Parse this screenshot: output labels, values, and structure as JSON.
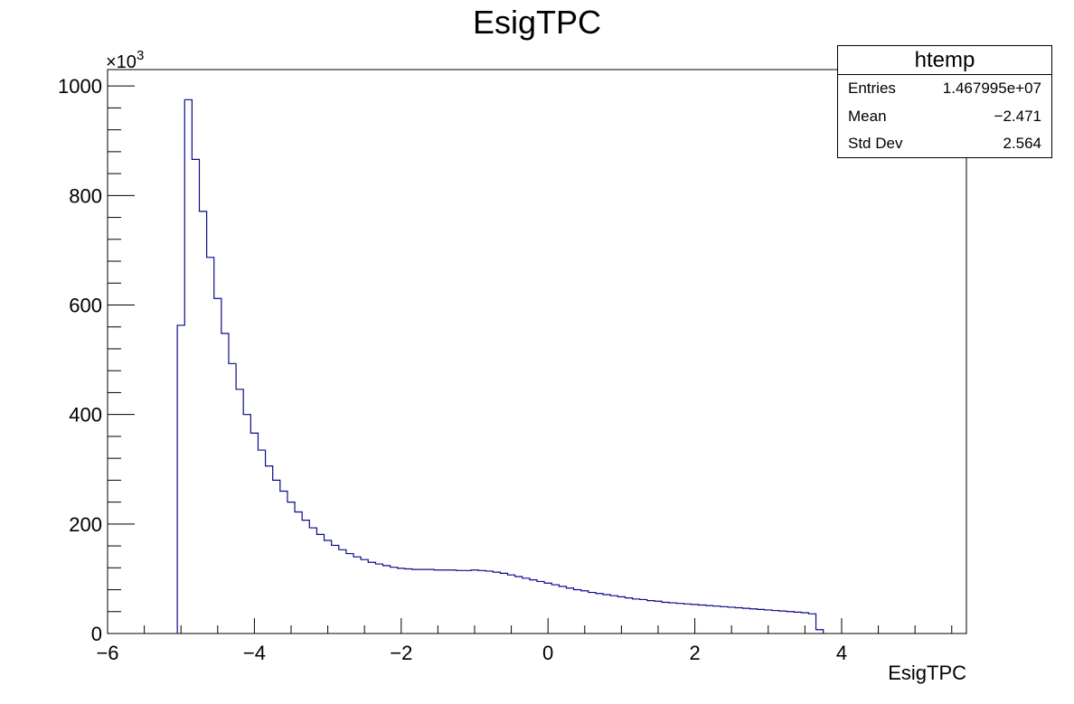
{
  "chart_data": {
    "type": "histogram",
    "title": "EsigTPC",
    "xlabel": "EsigTPC",
    "ylabel": "",
    "y_multiplier_label": "×10",
    "y_multiplier_exponent": "3",
    "xlim": [
      -6,
      5.7
    ],
    "ylim": [
      0,
      1030
    ],
    "x_ticks": [
      -6,
      -4,
      -2,
      0,
      2,
      4
    ],
    "x_tick_labels": [
      "−6",
      "−4",
      "−2",
      "0",
      "2",
      "4"
    ],
    "y_ticks": [
      0,
      200,
      400,
      600,
      800,
      1000
    ],
    "y_tick_labels": [
      "0",
      "200",
      "400",
      "600",
      "800",
      "1000"
    ],
    "bin_start": -5.05,
    "bin_width": 0.1,
    "values": [
      563,
      975,
      866,
      771,
      687,
      612,
      548,
      493,
      446,
      400,
      366,
      335,
      306,
      280,
      260,
      240,
      222,
      207,
      193,
      181,
      170,
      161,
      153,
      146,
      140,
      135,
      130,
      127,
      124,
      121,
      119,
      118,
      117,
      117,
      117,
      116,
      116,
      116,
      115,
      115,
      116,
      115,
      114,
      112,
      110,
      107,
      104,
      101,
      98,
      95,
      92,
      89,
      86,
      83,
      80,
      78,
      75,
      73,
      71,
      69,
      67,
      65,
      63,
      62,
      60,
      59,
      57,
      56,
      55,
      54,
      53,
      52,
      51,
      50,
      49,
      48,
      47,
      46,
      45,
      44,
      43,
      42,
      41,
      40,
      39,
      38,
      36,
      7
    ],
    "line_color": "#0a0a8c"
  },
  "stats": {
    "name": "htemp",
    "rows": [
      {
        "label": "Entries",
        "value": "1.467995e+07"
      },
      {
        "label": "Mean",
        "value": "−2.471"
      },
      {
        "label": "Std Dev",
        "value": "2.564"
      }
    ]
  }
}
